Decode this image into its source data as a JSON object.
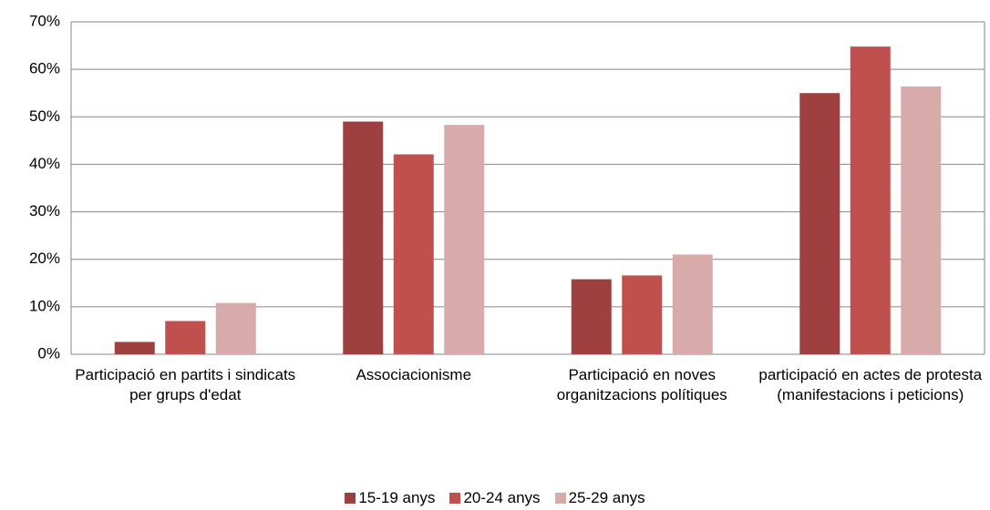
{
  "chart_data": {
    "type": "bar",
    "categories": [
      "Participació en partits i sindicats per grups d'edat",
      "Associacionisme",
      "Participació en noves organitzacions polítiques",
      "participació en actes de protesta (manifestacions i peticions)"
    ],
    "series": [
      {
        "name": "15-19 anys",
        "color": "#9e4040",
        "values": [
          2.6,
          49,
          15.8,
          55
        ]
      },
      {
        "name": "20-24 anys",
        "color": "#c0504d",
        "values": [
          7,
          42.1,
          16.6,
          64.8
        ]
      },
      {
        "name": "25-29 anys",
        "color": "#d9aaaa",
        "values": [
          10.8,
          48.3,
          21,
          56.4
        ]
      }
    ],
    "ylim": [
      0,
      70
    ],
    "yticks": [
      {
        "value": 0,
        "label": "0%"
      },
      {
        "value": 10,
        "label": "10%"
      },
      {
        "value": 20,
        "label": "20%"
      },
      {
        "value": 30,
        "label": "30%"
      },
      {
        "value": 40,
        "label": "40%"
      },
      {
        "value": 50,
        "label": "50%"
      },
      {
        "value": 60,
        "label": "60%"
      },
      {
        "value": 70,
        "label": "70%"
      }
    ],
    "grid": true,
    "legend": "bottom"
  }
}
